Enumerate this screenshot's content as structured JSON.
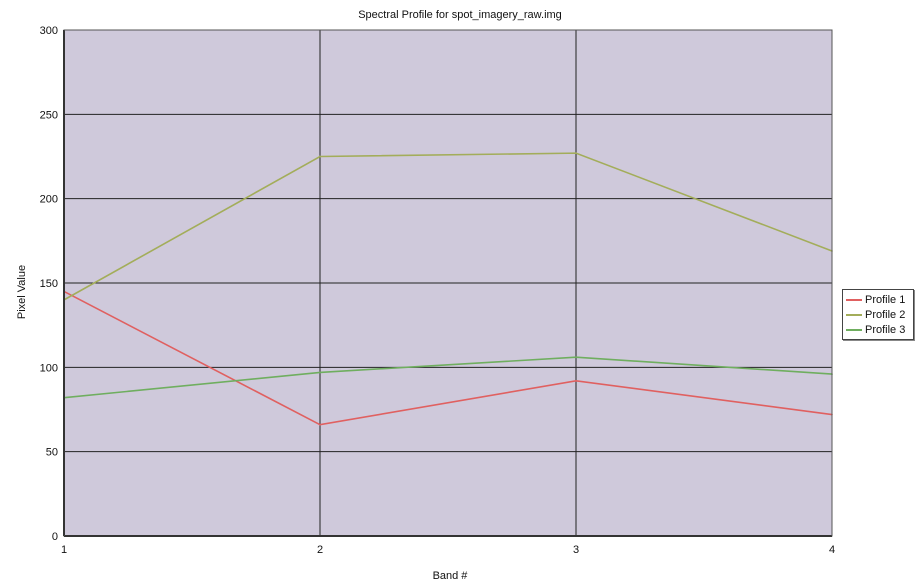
{
  "chart_data": {
    "type": "line",
    "title": "Spectral Profile for spot_imagery_raw.img",
    "xlabel": "Band #",
    "ylabel": "Pixel Value",
    "x": [
      1,
      2,
      3,
      4
    ],
    "xlim": [
      1,
      4
    ],
    "ylim": [
      0,
      300
    ],
    "x_ticks": [
      "1",
      "2",
      "3",
      "4"
    ],
    "y_ticks": [
      "0",
      "50",
      "100",
      "150",
      "200",
      "250",
      "300"
    ],
    "grid": true,
    "legend_position": "right",
    "plot_background": "#cfc9db",
    "series": [
      {
        "name": "Profile 1",
        "color": "#e06060",
        "values": [
          145,
          66,
          92,
          72
        ]
      },
      {
        "name": "Profile 2",
        "color": "#a3ad5a",
        "values": [
          140,
          225,
          227,
          169
        ]
      },
      {
        "name": "Profile 3",
        "color": "#6fae5f",
        "values": [
          82,
          97,
          106,
          96
        ]
      }
    ]
  }
}
